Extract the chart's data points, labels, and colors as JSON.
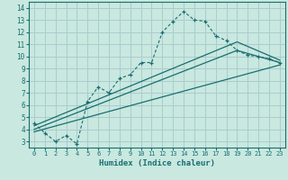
{
  "bg_color": "#c8e8e0",
  "grid_color": "#aacccc",
  "line_color": "#1a6e6e",
  "xlabel": "Humidex (Indice chaleur)",
  "xlim": [
    -0.5,
    23.5
  ],
  "ylim": [
    2.5,
    14.5
  ],
  "xticks": [
    0,
    1,
    2,
    3,
    4,
    5,
    6,
    7,
    8,
    9,
    10,
    11,
    12,
    13,
    14,
    15,
    16,
    17,
    18,
    19,
    20,
    21,
    22,
    23
  ],
  "yticks": [
    3,
    4,
    5,
    6,
    7,
    8,
    9,
    10,
    11,
    12,
    13,
    14
  ],
  "line1_x": [
    0,
    1,
    2,
    3,
    4,
    5,
    6,
    7,
    8,
    9,
    10,
    11,
    12,
    13,
    14,
    15,
    16,
    17,
    18,
    19,
    20,
    21,
    22,
    23
  ],
  "line1_y": [
    4.5,
    3.7,
    3.0,
    3.5,
    2.8,
    6.3,
    7.5,
    7.0,
    8.2,
    8.5,
    9.5,
    9.5,
    12.0,
    12.9,
    13.7,
    13.0,
    12.9,
    11.7,
    11.3,
    10.5,
    10.1,
    10.0,
    9.8,
    9.5
  ],
  "line2_x": [
    0,
    19,
    23
  ],
  "line2_y": [
    4.3,
    11.2,
    9.7
  ],
  "line3_x": [
    0,
    19,
    23
  ],
  "line3_y": [
    4.0,
    10.5,
    9.5
  ],
  "line4_x": [
    0,
    23
  ],
  "line4_y": [
    3.8,
    9.3
  ],
  "xlabel_fontsize": 6.5,
  "tick_fontsize": 5.5
}
